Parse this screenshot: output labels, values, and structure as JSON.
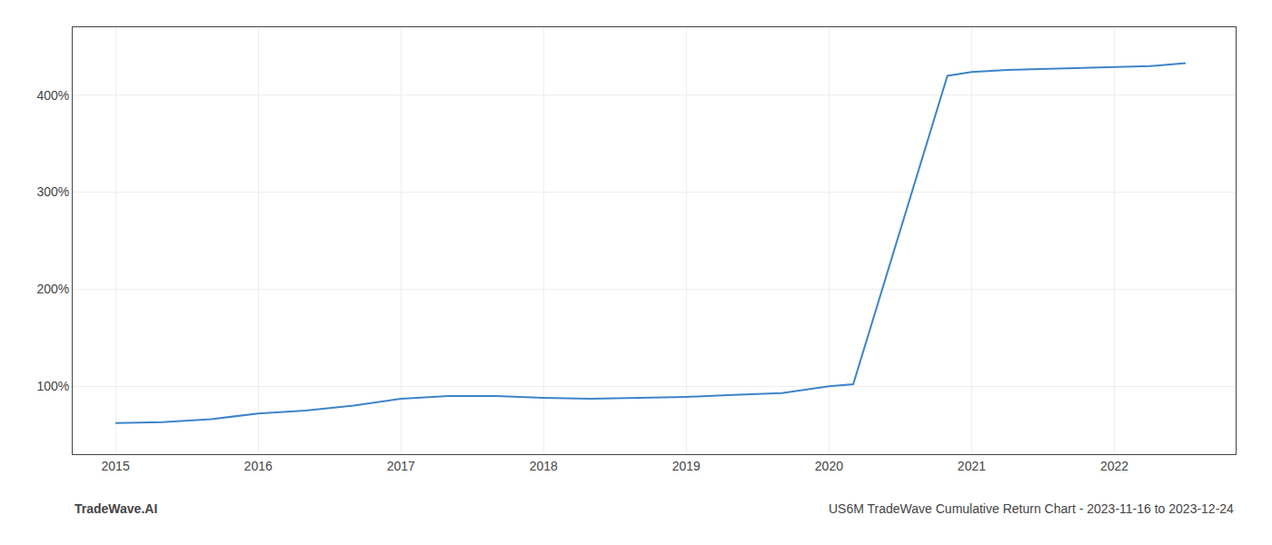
{
  "chart_data": {
    "type": "line",
    "x": [
      2015.0,
      2015.33,
      2015.67,
      2016.0,
      2016.33,
      2016.67,
      2017.0,
      2017.33,
      2017.67,
      2018.0,
      2018.33,
      2018.67,
      2019.0,
      2019.33,
      2019.67,
      2020.0,
      2020.08,
      2020.17,
      2020.83,
      2021.0,
      2021.25,
      2021.5,
      2021.75,
      2022.0,
      2022.25,
      2022.5
    ],
    "values": [
      62,
      63,
      66,
      72,
      75,
      80,
      87,
      90,
      90,
      88,
      87,
      88,
      89,
      91,
      93,
      100,
      101,
      102,
      420,
      424,
      426,
      427,
      428,
      429,
      430,
      433
    ],
    "color": "#3d85c8",
    "xlim": [
      2014.7,
      2022.85
    ],
    "xticks": [
      2015,
      2016,
      2017,
      2018,
      2019,
      2020,
      2021,
      2022
    ],
    "ylim": [
      30,
      470
    ],
    "yticks": [
      {
        "value": 100,
        "label": "100%"
      },
      {
        "value": 200,
        "label": "200%"
      },
      {
        "value": 300,
        "label": "300%"
      },
      {
        "value": 400,
        "label": "400%"
      }
    ],
    "grid": true,
    "annotations": [
      "TradeWave.AI",
      "US6M TradeWave Cumulative Return Chart - 2023-11-16 to 2023-12-24"
    ]
  }
}
